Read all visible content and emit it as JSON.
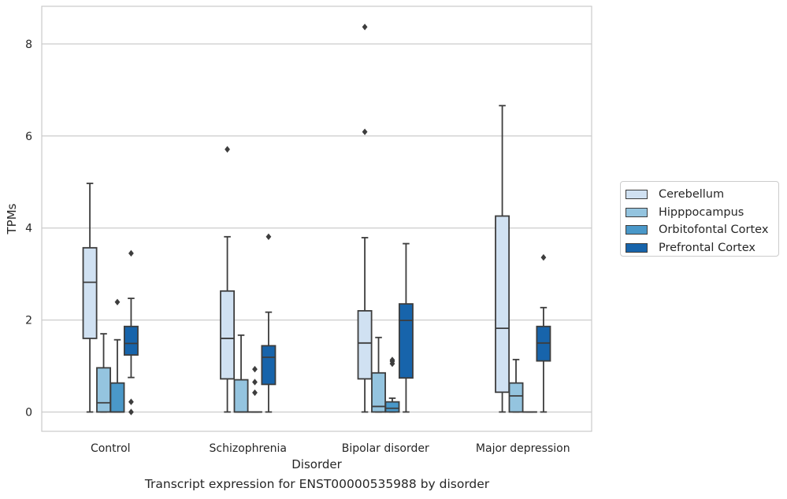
{
  "chart_data": {
    "type": "box",
    "xlabel": "Disorder",
    "ylabel": "TPMs",
    "title": "Transcript expression for ENST00000535988 by disorder",
    "categories": [
      "Control",
      "Schizophrenia",
      "Bipolar disorder",
      "Major depression"
    ],
    "yticks": [
      0,
      2,
      4,
      6,
      8
    ],
    "ylim": [
      -0.42,
      8.82
    ],
    "grid": "horizontal",
    "legend_position": "right",
    "series": [
      {
        "name": "Cerebellum",
        "color": "#d0e1f2",
        "boxes": [
          {
            "whislo": 0,
            "q1": 1.6,
            "median": 2.82,
            "q3": 3.57,
            "whishi": 4.97,
            "fliers": []
          },
          {
            "whislo": 0,
            "q1": 0.72,
            "median": 1.6,
            "q3": 2.63,
            "whishi": 3.81,
            "fliers": [
              5.71
            ]
          },
          {
            "whislo": 0,
            "q1": 0.72,
            "median": 1.5,
            "q3": 2.2,
            "whishi": 3.79,
            "fliers": [
              6.09,
              8.37
            ]
          },
          {
            "whislo": 0,
            "q1": 0.43,
            "median": 1.82,
            "q3": 4.26,
            "whishi": 6.66,
            "fliers": []
          }
        ]
      },
      {
        "name": "Hipppocampus",
        "color": "#94c4df",
        "boxes": [
          {
            "whislo": 0,
            "q1": 0,
            "median": 0.2,
            "q3": 0.96,
            "whishi": 1.7,
            "fliers": []
          },
          {
            "whislo": 0,
            "q1": 0,
            "median": 0,
            "q3": 0.7,
            "whishi": 1.67,
            "fliers": []
          },
          {
            "whislo": 0,
            "q1": 0,
            "median": 0.12,
            "q3": 0.85,
            "whishi": 1.62,
            "fliers": []
          },
          {
            "whislo": 0,
            "q1": 0,
            "median": 0.35,
            "q3": 0.63,
            "whishi": 1.14,
            "fliers": []
          }
        ]
      },
      {
        "name": "Orbitofontal Cortex",
        "color": "#4a98c9",
        "boxes": [
          {
            "whislo": 0,
            "q1": 0,
            "median": 0,
            "q3": 0.63,
            "whishi": 1.57,
            "fliers": [
              2.39
            ]
          },
          {
            "whislo": 0,
            "q1": 0,
            "median": 0,
            "q3": 0,
            "whishi": 0,
            "fliers": [
              0.42,
              0.65,
              0.93
            ]
          },
          {
            "whislo": 0,
            "q1": 0,
            "median": 0.08,
            "q3": 0.22,
            "whishi": 0.3,
            "fliers": [
              1.05,
              1.1,
              1.13
            ]
          },
          {
            "whislo": 0,
            "q1": 0,
            "median": 0,
            "q3": 0,
            "whishi": 0,
            "fliers": []
          }
        ]
      },
      {
        "name": "Prefrontal Cortex",
        "color": "#1764ab",
        "boxes": [
          {
            "whislo": 0.75,
            "q1": 1.24,
            "median": 1.49,
            "q3": 1.86,
            "whishi": 2.47,
            "fliers": [
              3.45,
              0.22,
              0
            ]
          },
          {
            "whislo": 0,
            "q1": 0.6,
            "median": 1.19,
            "q3": 1.44,
            "whishi": 2.17,
            "fliers": [
              3.81
            ]
          },
          {
            "whislo": 0,
            "q1": 0.74,
            "median": 1.99,
            "q3": 2.35,
            "whishi": 3.66,
            "fliers": []
          },
          {
            "whislo": 0,
            "q1": 1.11,
            "median": 1.5,
            "q3": 1.86,
            "whishi": 2.27,
            "fliers": [
              3.36
            ]
          }
        ]
      }
    ]
  }
}
